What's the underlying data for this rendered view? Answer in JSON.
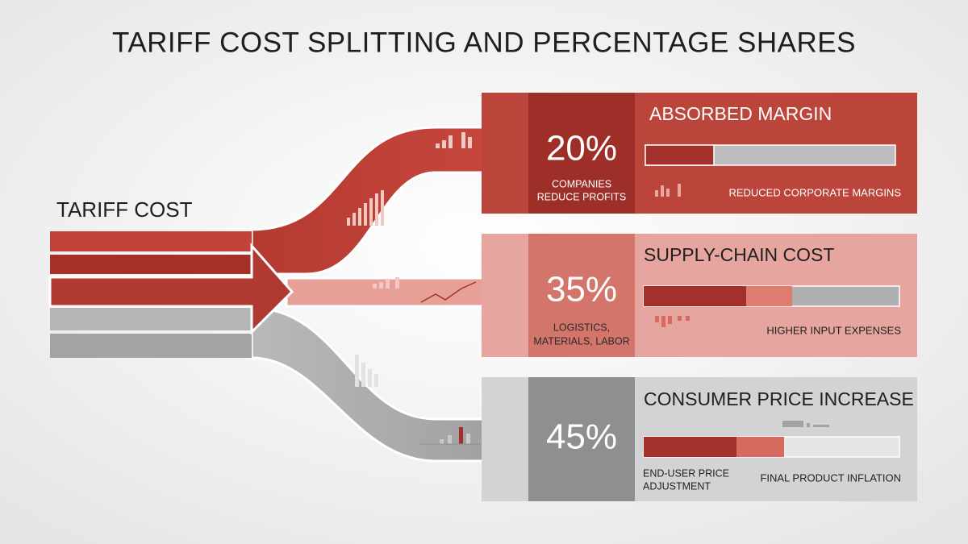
{
  "title": "TARIFF COST SPLITTING AND PERCENTAGE SHARES",
  "source": {
    "label": "TARIFF COST"
  },
  "branches": [
    {
      "share": "20%",
      "share_note": [
        "COMPANIES",
        "REDUCE PROFITS"
      ],
      "heading": "ABSORBED MARGIN",
      "caption_right": "REDUCED CORPORATE MARGINS"
    },
    {
      "share": "35%",
      "share_note": [
        "LOGISTICS,",
        "MATERIALS, LABOR"
      ],
      "heading": "SUPPLY-CHAIN COST",
      "caption_right": "HIGHER INPUT EXPENSES"
    },
    {
      "share": "45%",
      "heading": "CONSUMER PRICE INCREASE",
      "caption_left": [
        "END-USER PRICE",
        "ADJUSTMENT"
      ],
      "caption_right": "FINAL PRODUCT INFLATION"
    }
  ]
}
